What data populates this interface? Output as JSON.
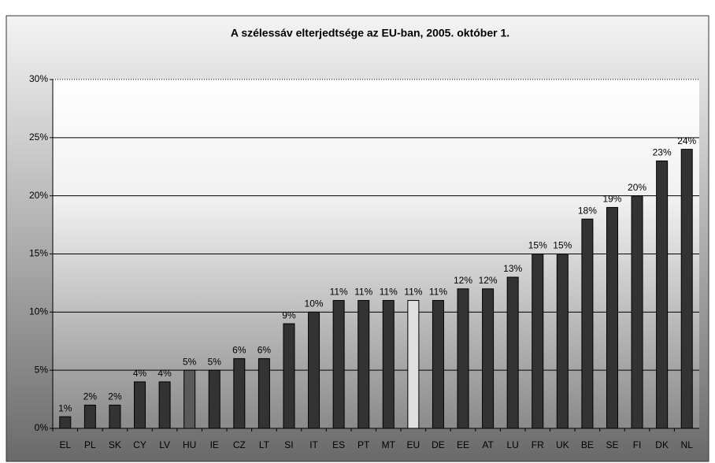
{
  "chart_data": {
    "type": "bar",
    "title": "A szélessáv elterjedtsége az EU-ban, 2005. október 1.",
    "categories": [
      "EL",
      "PL",
      "SK",
      "CY",
      "LV",
      "HU",
      "IE",
      "CZ",
      "LT",
      "SI",
      "IT",
      "ES",
      "PT",
      "MT",
      "EU",
      "DE",
      "EE",
      "AT",
      "LU",
      "FR",
      "UK",
      "BE",
      "SE",
      "FI",
      "DK",
      "NL"
    ],
    "values": [
      1,
      2,
      2,
      4,
      4,
      5,
      5,
      6,
      6,
      9,
      10,
      11,
      11,
      11,
      11,
      11,
      12,
      12,
      13,
      15,
      15,
      18,
      19,
      20,
      23,
      24
    ],
    "value_labels": [
      "1%",
      "2%",
      "2%",
      "4%",
      "4%",
      "5%",
      "5%",
      "6%",
      "6%",
      "9%",
      "10%",
      "11%",
      "11%",
      "11%",
      "11%",
      "11%",
      "12%",
      "12%",
      "13%",
      "15%",
      "15%",
      "18%",
      "19%",
      "20%",
      "23%",
      "24%"
    ],
    "colors": [
      "#333333",
      "#333333",
      "#333333",
      "#333333",
      "#333333",
      "#5a5a5a",
      "#333333",
      "#333333",
      "#333333",
      "#333333",
      "#333333",
      "#333333",
      "#333333",
      "#333333",
      "#e0e0e0",
      "#333333",
      "#333333",
      "#333333",
      "#333333",
      "#333333",
      "#333333",
      "#333333",
      "#333333",
      "#333333",
      "#333333",
      "#333333"
    ],
    "ylim": [
      0,
      30
    ],
    "yticks": [
      {
        "value": 0,
        "label": "0%"
      },
      {
        "value": 5,
        "label": "5%"
      },
      {
        "value": 10,
        "label": "10%"
      },
      {
        "value": 15,
        "label": "15%"
      },
      {
        "value": 20,
        "label": "20%"
      },
      {
        "value": 25,
        "label": "25%"
      },
      {
        "value": 30,
        "label": "30%"
      }
    ],
    "grid": true
  }
}
